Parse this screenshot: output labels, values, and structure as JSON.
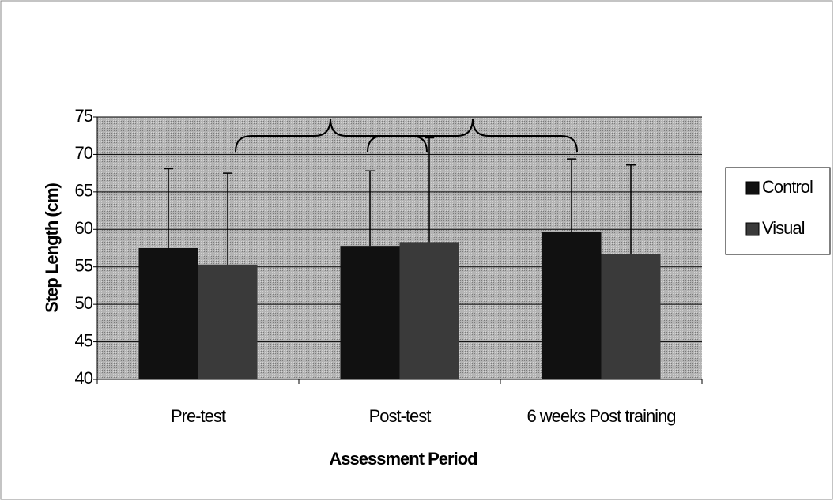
{
  "chart_data": {
    "type": "bar",
    "xlabel": "Assessment Period",
    "ylabel": "Step Length (cm)",
    "categories": [
      "Pre-test",
      "Post-test",
      "6 weeks Post training"
    ],
    "series": [
      {
        "name": "Control",
        "color": "#111111",
        "values": [
          57.5,
          57.8,
          59.7
        ],
        "errors": [
          10.6,
          10.0,
          9.7
        ]
      },
      {
        "name": "Visual",
        "color": "#3a3a3a",
        "values": [
          55.3,
          58.3,
          56.7
        ],
        "errors": [
          12.2,
          13.9,
          11.9
        ]
      }
    ],
    "ylim": [
      40,
      75
    ],
    "yticks": [
      40,
      45,
      50,
      55,
      60,
      65,
      70,
      75
    ],
    "grid": true,
    "legend": "right"
  }
}
